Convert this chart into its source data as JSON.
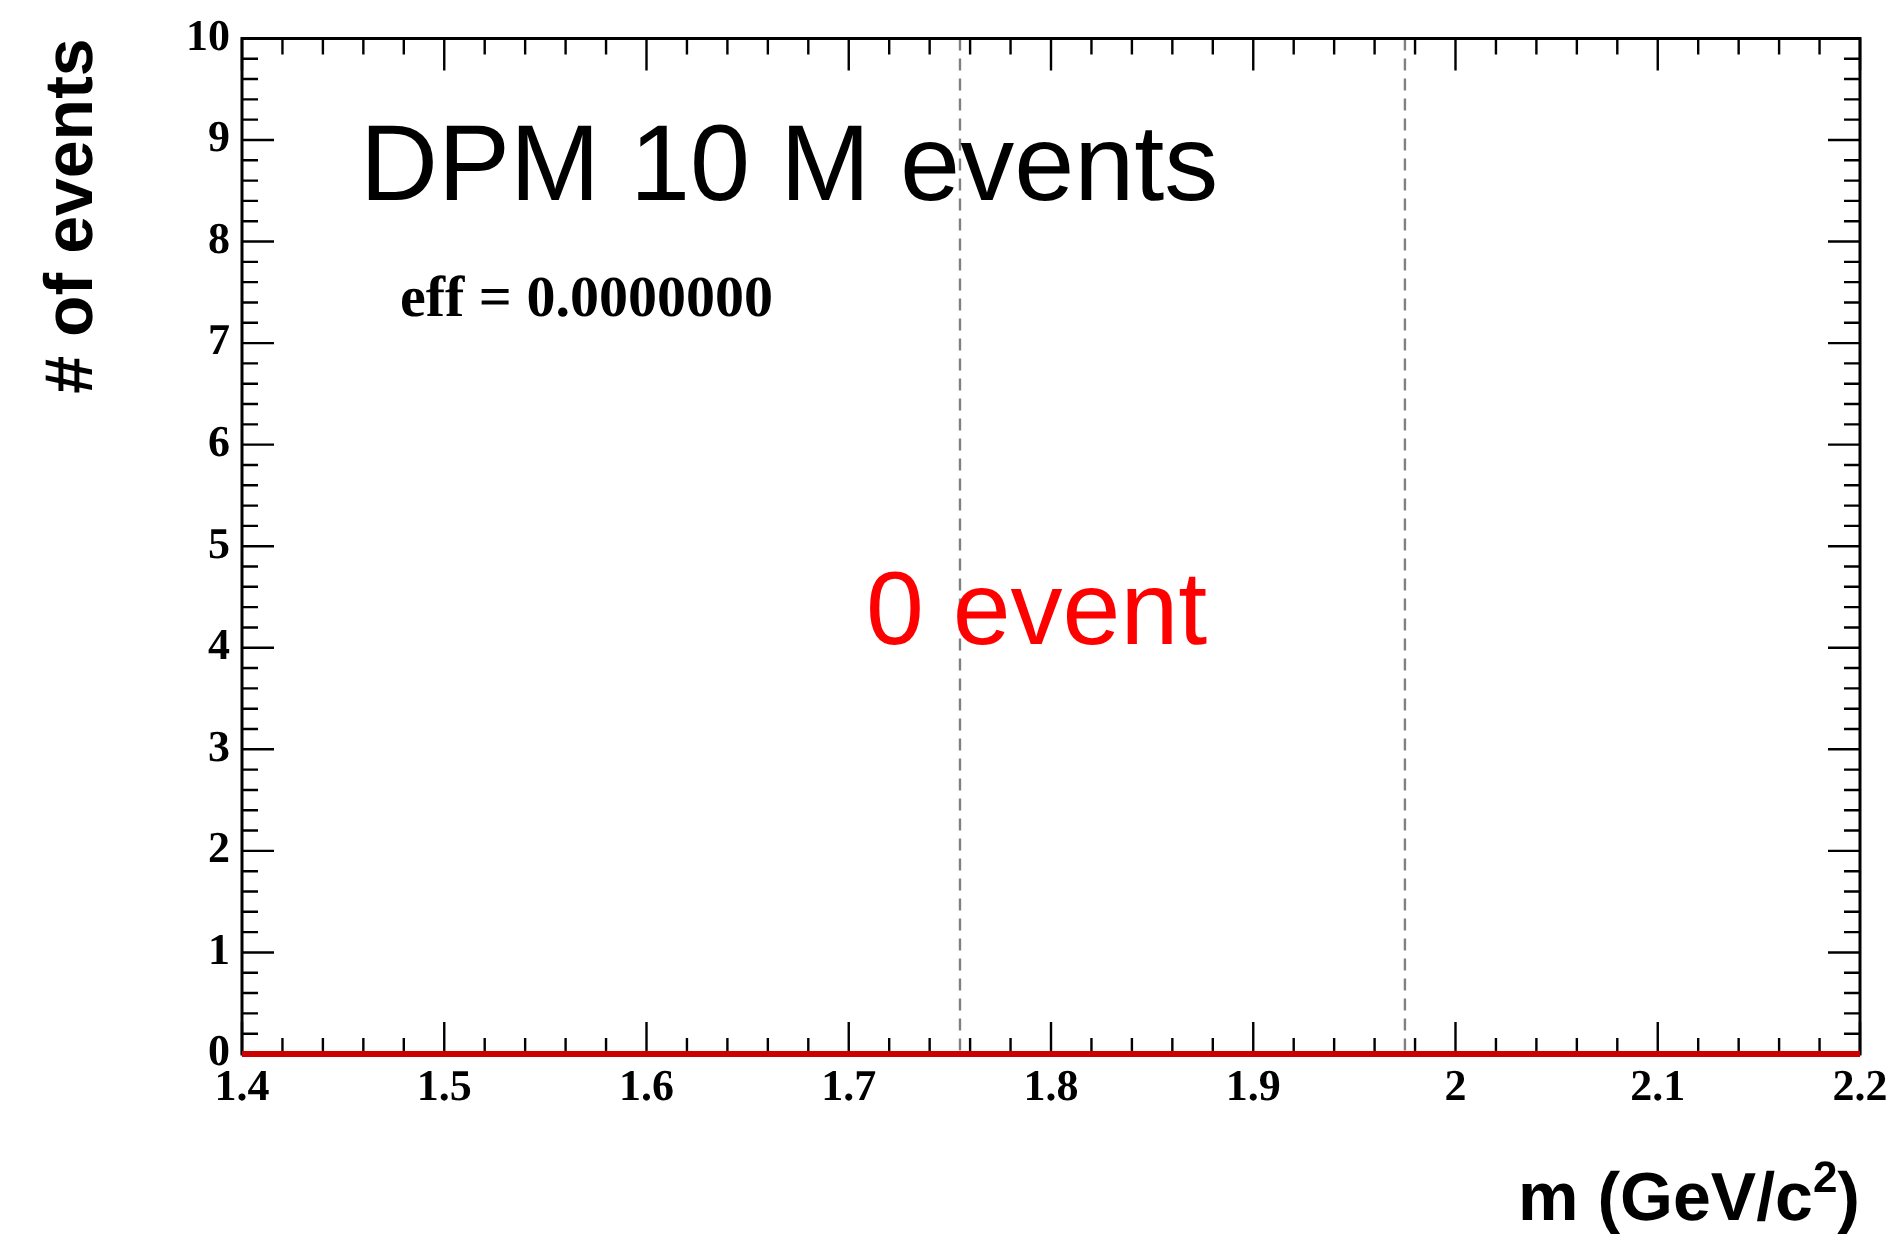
{
  "chart_data": {
    "type": "line",
    "xlabel": "m (GeV/c$^{2}$)",
    "ylabel": "# of events",
    "x": [
      1.4,
      2.2
    ],
    "series": [
      {
        "color": "#cc0000",
        "values": [
          0,
          0
        ]
      }
    ],
    "xlim": [
      1.4,
      2.2
    ],
    "xticks": [
      1.4,
      1.5,
      1.6,
      1.7,
      1.8,
      1.9,
      2,
      2.1,
      2.2
    ],
    "ylim": [
      0,
      10
    ],
    "yticks": [
      0,
      1,
      2,
      3,
      4,
      5,
      6,
      7,
      8,
      9,
      10
    ],
    "grid": false,
    "legend": false,
    "marker": "none",
    "ref_lines": [
      {
        "axis": "x",
        "value": 1.755,
        "color": "#808080",
        "line_style": "dashed"
      },
      {
        "axis": "x",
        "value": 1.975,
        "color": "#808080",
        "line_style": "dashed"
      }
    ],
    "annotations": [
      "DPM 10 M events",
      "eff = 0.0000000",
      "0 event"
    ]
  }
}
